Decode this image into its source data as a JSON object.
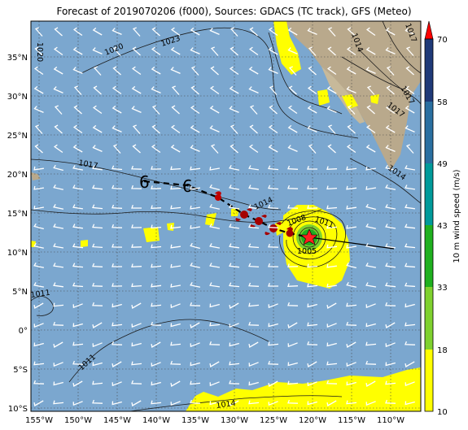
{
  "title": "Forecast of 2019070206 (f000), Sources: GDACS (TC track), GFS (Meteo)",
  "lat_ticks": [
    "35°N",
    "30°N",
    "25°N",
    "20°N",
    "15°N",
    "10°N",
    "5°N",
    "0°",
    "5°S",
    "10°S"
  ],
  "lon_ticks": [
    "155°W",
    "150°W",
    "145°W",
    "140°W",
    "135°W",
    "130°W",
    "125°W",
    "120°W",
    "115°W",
    "110°W"
  ],
  "isobar_labels": [
    "1020",
    "1023",
    "1017",
    "1014",
    "1011",
    "1008",
    "1005",
    "1011",
    "1011",
    "1014",
    "1014",
    "1017",
    "1017",
    "1014",
    "1017",
    "1020"
  ],
  "colorbar": {
    "label": "10 m wind speed (m/s)",
    "ticks": [
      "10",
      "18",
      "33",
      "43",
      "49",
      "58",
      "70"
    ],
    "colors": [
      "#ffff00",
      "#7fd12f",
      "#1fb01f",
      "#00a050",
      "#009a9a",
      "#2a6fa0",
      "#1f3a78",
      "#ff0000"
    ]
  },
  "colors": {
    "ocean": "#7ba7cf",
    "land": "#b9a98c",
    "track": "#000000",
    "storm_symbol": "#a50000"
  }
}
